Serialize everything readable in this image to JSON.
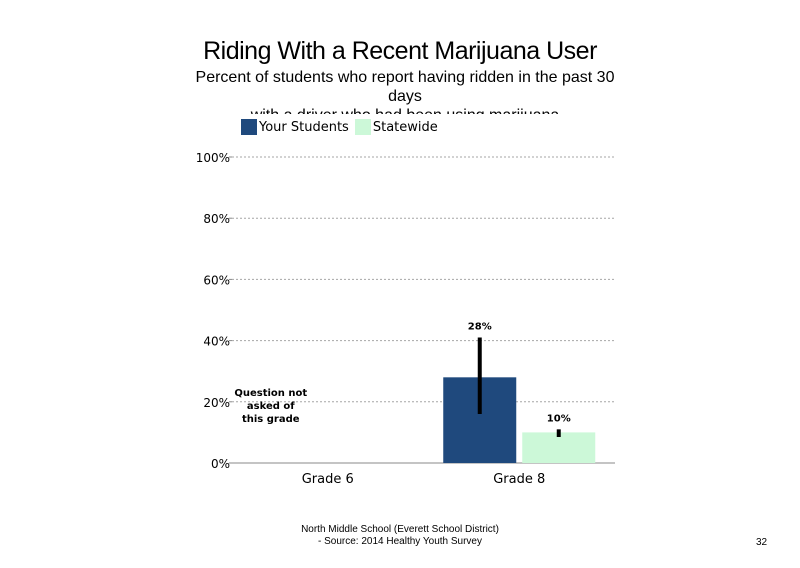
{
  "chart_data": {
    "type": "bar",
    "title": "Riding With a Recent Marijuana User",
    "subtitle": [
      "Percent of students who report having ridden in the past 30 days",
      "with a driver who had been using marijuana"
    ],
    "categories": [
      "Grade 6",
      "Grade 8"
    ],
    "series": [
      {
        "name": "Your Students",
        "color": "#1f497d",
        "values": [
          null,
          28
        ],
        "labels": [
          "",
          "28%"
        ],
        "error": [
          null,
          [
            16,
            41
          ]
        ]
      },
      {
        "name": "Statewide",
        "color": "#ccf8d8",
        "values": [
          null,
          10
        ],
        "labels": [
          "",
          "10%"
        ],
        "error": [
          null,
          [
            8.5,
            11
          ]
        ]
      }
    ],
    "ylim": [
      0,
      100
    ],
    "yticks": [
      "0%",
      "20%",
      "40%",
      "60%",
      "80%",
      "100%"
    ],
    "ytick_values": [
      0,
      20,
      40,
      60,
      80,
      100
    ],
    "grid": true,
    "legend_position": "top-left",
    "annotations": [
      {
        "category": "Grade 6",
        "lines": [
          "Question not",
          "asked of",
          "this grade"
        ]
      }
    ]
  },
  "footer": {
    "line1": "North Middle School (Everett School District)",
    "line2": "- Source: 2014 Healthy Youth Survey"
  },
  "page_number": "32"
}
